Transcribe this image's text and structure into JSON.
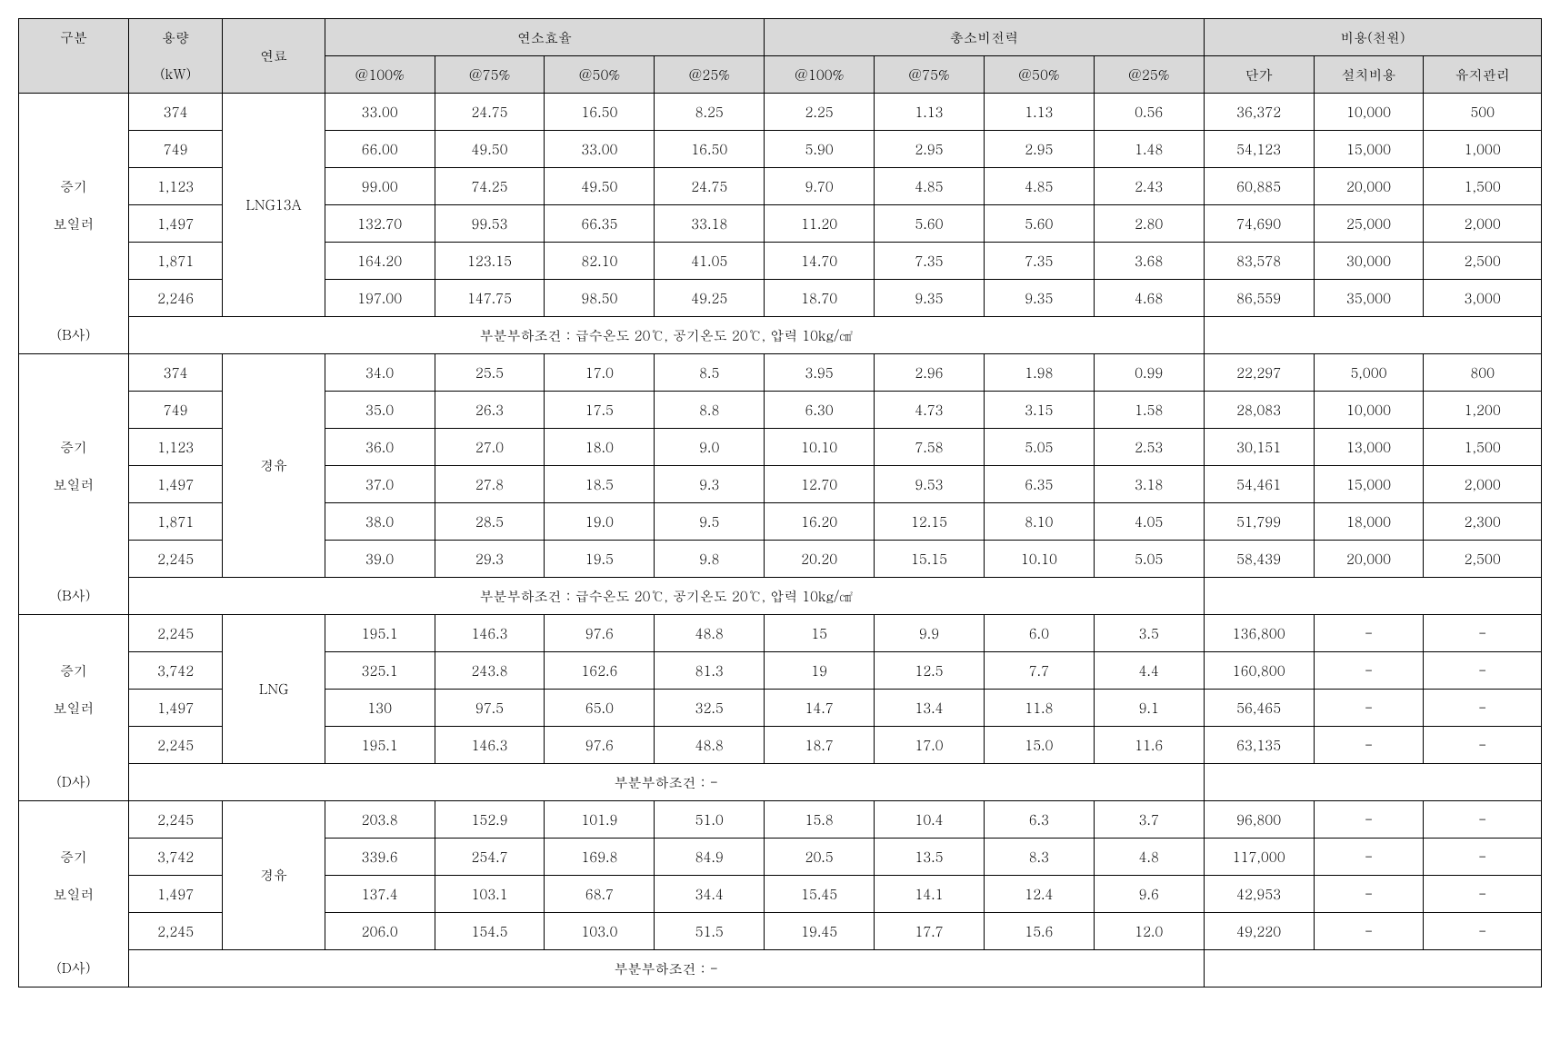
{
  "headers": {
    "col_category": "구분",
    "col_capacity_line1": "용량",
    "col_capacity_line2": "(kW)",
    "col_fuel": "연료",
    "group_efficiency": "연소효율",
    "group_power": "총소비전력",
    "group_cost": "비용(천원)",
    "pct100": "@100%",
    "pct75": "@75%",
    "pct50": "@50%",
    "pct25": "@25%",
    "cost_unit": "단가",
    "cost_install": "설치비용",
    "cost_maint": "유지관리"
  },
  "labels": {
    "steam_boiler_l1": "증기",
    "steam_boiler_l2": "보일러",
    "company_b": "(B사)",
    "company_d": "(D사)"
  },
  "fuels": {
    "lng13a": "LNG13A",
    "diesel": "경유",
    "lng": "LNG"
  },
  "notes": {
    "cond1": "부분부하조건 : 급수온도 20℃, 공기온도 20℃, 압력 10kg/㎠",
    "cond2": "부분부하조건 : -"
  },
  "g1": {
    "r1": {
      "cap": "374",
      "e100": "33.00",
      "e75": "24.75",
      "e50": "16.50",
      "e25": "8.25",
      "p100": "2.25",
      "p75": "1.13",
      "p50": "1.13",
      "p25": "0.56",
      "unit": "36,372",
      "inst": "10,000",
      "maint": "500"
    },
    "r2": {
      "cap": "749",
      "e100": "66.00",
      "e75": "49.50",
      "e50": "33.00",
      "e25": "16.50",
      "p100": "5.90",
      "p75": "2.95",
      "p50": "2.95",
      "p25": "1.48",
      "unit": "54,123",
      "inst": "15,000",
      "maint": "1,000"
    },
    "r3": {
      "cap": "1,123",
      "e100": "99.00",
      "e75": "74.25",
      "e50": "49.50",
      "e25": "24.75",
      "p100": "9.70",
      "p75": "4.85",
      "p50": "4.85",
      "p25": "2.43",
      "unit": "60,885",
      "inst": "20,000",
      "maint": "1,500"
    },
    "r4": {
      "cap": "1,497",
      "e100": "132.70",
      "e75": "99.53",
      "e50": "66.35",
      "e25": "33.18",
      "p100": "11.20",
      "p75": "5.60",
      "p50": "5.60",
      "p25": "2.80",
      "unit": "74,690",
      "inst": "25,000",
      "maint": "2,000"
    },
    "r5": {
      "cap": "1,871",
      "e100": "164.20",
      "e75": "123.15",
      "e50": "82.10",
      "e25": "41.05",
      "p100": "14.70",
      "p75": "7.35",
      "p50": "7.35",
      "p25": "3.68",
      "unit": "83,578",
      "inst": "30,000",
      "maint": "2,500"
    },
    "r6": {
      "cap": "2,246",
      "e100": "197.00",
      "e75": "147.75",
      "e50": "98.50",
      "e25": "49.25",
      "p100": "18.70",
      "p75": "9.35",
      "p50": "9.35",
      "p25": "4.68",
      "unit": "86,559",
      "inst": "35,000",
      "maint": "3,000"
    }
  },
  "g2": {
    "r1": {
      "cap": "374",
      "e100": "34.0",
      "e75": "25.5",
      "e50": "17.0",
      "e25": "8.5",
      "p100": "3.95",
      "p75": "2.96",
      "p50": "1.98",
      "p25": "0.99",
      "unit": "22,297",
      "inst": "5,000",
      "maint": "800"
    },
    "r2": {
      "cap": "749",
      "e100": "35.0",
      "e75": "26.3",
      "e50": "17.5",
      "e25": "8.8",
      "p100": "6.30",
      "p75": "4.73",
      "p50": "3.15",
      "p25": "1.58",
      "unit": "28,083",
      "inst": "10,000",
      "maint": "1,200"
    },
    "r3": {
      "cap": "1,123",
      "e100": "36.0",
      "e75": "27.0",
      "e50": "18.0",
      "e25": "9.0",
      "p100": "10.10",
      "p75": "7.58",
      "p50": "5.05",
      "p25": "2.53",
      "unit": "30,151",
      "inst": "13,000",
      "maint": "1,500"
    },
    "r4": {
      "cap": "1,497",
      "e100": "37.0",
      "e75": "27.8",
      "e50": "18.5",
      "e25": "9.3",
      "p100": "12.70",
      "p75": "9.53",
      "p50": "6.35",
      "p25": "3.18",
      "unit": "54,461",
      "inst": "15,000",
      "maint": "2,000"
    },
    "r5": {
      "cap": "1,871",
      "e100": "38.0",
      "e75": "28.5",
      "e50": "19.0",
      "e25": "9.5",
      "p100": "16.20",
      "p75": "12.15",
      "p50": "8.10",
      "p25": "4.05",
      "unit": "51,799",
      "inst": "18,000",
      "maint": "2,300"
    },
    "r6": {
      "cap": "2,245",
      "e100": "39.0",
      "e75": "29.3",
      "e50": "19.5",
      "e25": "9.8",
      "p100": "20.20",
      "p75": "15.15",
      "p50": "10.10",
      "p25": "5.05",
      "unit": "58,439",
      "inst": "20,000",
      "maint": "2,500"
    }
  },
  "g3": {
    "r1": {
      "cap": "2,245",
      "e100": "195.1",
      "e75": "146.3",
      "e50": "97.6",
      "e25": "48.8",
      "p100": "15",
      "p75": "9.9",
      "p50": "6.0",
      "p25": "3.5",
      "unit": "136,800",
      "inst": "-",
      "maint": "-"
    },
    "r2": {
      "cap": "3,742",
      "e100": "325.1",
      "e75": "243.8",
      "e50": "162.6",
      "e25": "81.3",
      "p100": "19",
      "p75": "12.5",
      "p50": "7.7",
      "p25": "4.4",
      "unit": "160,800",
      "inst": "-",
      "maint": "-"
    },
    "r3": {
      "cap": "1,497",
      "e100": "130",
      "e75": "97.5",
      "e50": "65.0",
      "e25": "32.5",
      "p100": "14.7",
      "p75": "13.4",
      "p50": "11.8",
      "p25": "9.1",
      "unit": "56,465",
      "inst": "-",
      "maint": "-"
    },
    "r4": {
      "cap": "2,245",
      "e100": "195.1",
      "e75": "146.3",
      "e50": "97.6",
      "e25": "48.8",
      "p100": "18.7",
      "p75": "17.0",
      "p50": "15.0",
      "p25": "11.6",
      "unit": "63,135",
      "inst": "-",
      "maint": "-"
    }
  },
  "g4": {
    "r1": {
      "cap": "2,245",
      "e100": "203.8",
      "e75": "152.9",
      "e50": "101.9",
      "e25": "51.0",
      "p100": "15.8",
      "p75": "10.4",
      "p50": "6.3",
      "p25": "3.7",
      "unit": "96,800",
      "inst": "-",
      "maint": "-"
    },
    "r2": {
      "cap": "3,742",
      "e100": "339.6",
      "e75": "254.7",
      "e50": "169.8",
      "e25": "84.9",
      "p100": "20.5",
      "p75": "13.5",
      "p50": "8.3",
      "p25": "4.8",
      "unit": "117,000",
      "inst": "-",
      "maint": "-"
    },
    "r3": {
      "cap": "1,497",
      "e100": "137.4",
      "e75": "103.1",
      "e50": "68.7",
      "e25": "34.4",
      "p100": "15.45",
      "p75": "14.1",
      "p50": "12.4",
      "p25": "9.6",
      "unit": "42,953",
      "inst": "-",
      "maint": "-"
    },
    "r4": {
      "cap": "2,245",
      "e100": "206.0",
      "e75": "154.5",
      "e50": "103.0",
      "e25": "51.5",
      "p100": "19.45",
      "p75": "17.7",
      "p50": "15.6",
      "p25": "12.0",
      "unit": "49,220",
      "inst": "-",
      "maint": "-"
    }
  }
}
